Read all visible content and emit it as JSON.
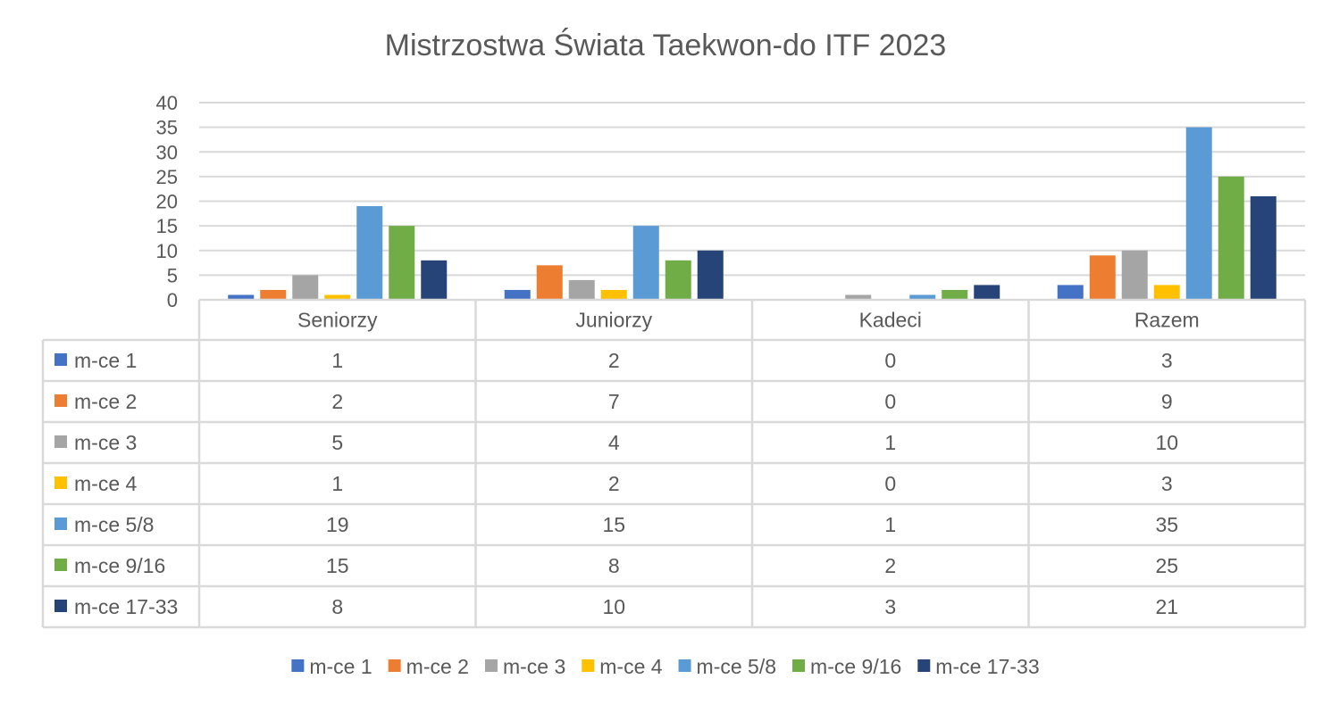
{
  "chart_data": {
    "type": "bar",
    "title": "Mistrzostwa Świata Taekwon-do ITF 2023",
    "categories": [
      "Seniorzy",
      "Juniorzy",
      "Kadeci",
      "Razem"
    ],
    "ylim": [
      0,
      40
    ],
    "yticks": [
      0,
      5,
      10,
      15,
      20,
      25,
      30,
      35,
      40
    ],
    "grid": true,
    "legend_position": "bottom",
    "data_table": true,
    "series": [
      {
        "name": "m-ce 1",
        "color": "#4472C4",
        "values": [
          1,
          2,
          0,
          3
        ]
      },
      {
        "name": "m-ce 2",
        "color": "#ED7D31",
        "values": [
          2,
          7,
          0,
          9
        ]
      },
      {
        "name": "m-ce 3",
        "color": "#A5A5A5",
        "values": [
          5,
          4,
          1,
          10
        ]
      },
      {
        "name": "m-ce 4",
        "color": "#FFC000",
        "values": [
          1,
          2,
          0,
          3
        ]
      },
      {
        "name": "m-ce 5/8",
        "color": "#5B9BD5",
        "values": [
          19,
          15,
          1,
          35
        ]
      },
      {
        "name": "m-ce 9/16",
        "color": "#70AD47",
        "values": [
          15,
          8,
          2,
          25
        ]
      },
      {
        "name": "m-ce 17-33",
        "color": "#264478",
        "values": [
          8,
          10,
          3,
          21
        ]
      }
    ]
  }
}
